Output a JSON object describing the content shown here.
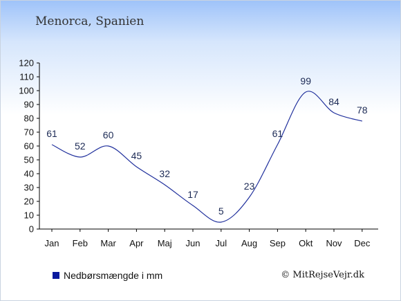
{
  "header": {
    "title": "Menorca, Spanien"
  },
  "legend": {
    "label": "Nedbørsmængde i mm",
    "color": "#0a1a9e"
  },
  "footer": {
    "credit": "© MitRejseVejr.dk"
  },
  "chart_data": {
    "type": "line",
    "title": "Menorca, Spanien",
    "categories": [
      "Jan",
      "Feb",
      "Mar",
      "Apr",
      "Maj",
      "Jun",
      "Jul",
      "Aug",
      "Sep",
      "Okt",
      "Nov",
      "Dec"
    ],
    "series": [
      {
        "name": "Nedbørsmængde i mm",
        "values": [
          61,
          52,
          60,
          45,
          32,
          17,
          5,
          23,
          61,
          99,
          84,
          78
        ],
        "color": "#1f2f9c"
      }
    ],
    "ylim": [
      0,
      120
    ],
    "yticks": [
      0,
      10,
      20,
      30,
      40,
      50,
      60,
      70,
      80,
      90,
      100,
      110,
      120
    ],
    "xlabel": "",
    "ylabel": "",
    "grid": false,
    "legend_position": "bottom-left"
  }
}
